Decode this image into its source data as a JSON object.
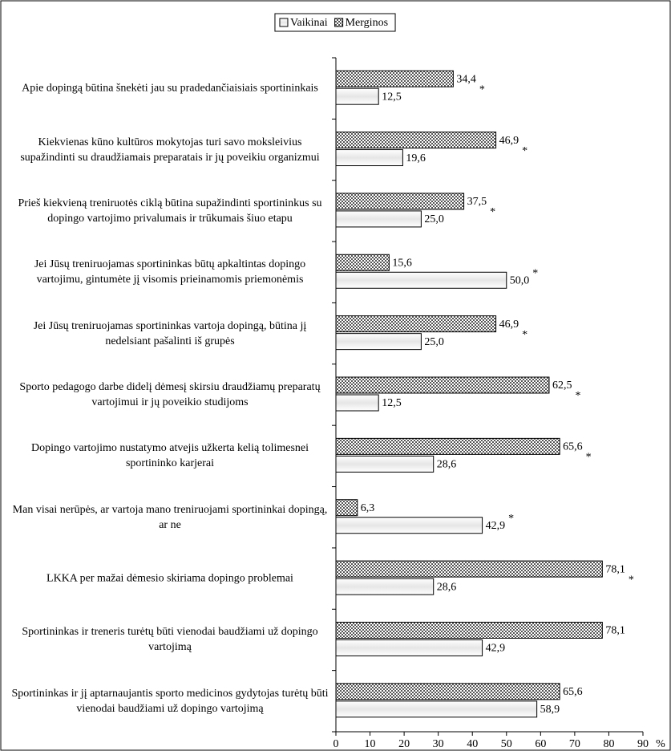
{
  "chart_data": {
    "type": "bar",
    "orientation": "horizontal",
    "categories": [
      "Apie dopingą būtina šnekėti jau su pradedančiaisiais sportininkais",
      "Kiekvienas kūno kultūros mokytojas turi savo moksleivius supažindinti su draudžiamais preparatais ir jų poveikiu organizmui",
      "Prieš kiekvieną treniruotės ciklą būtina supažindinti sportininkus su dopingo vartojimo privalumais ir trūkumais šiuo etapu",
      "Jei Jūsų treniruojamas sportininkas būtų apkaltintas dopingo vartojimu, gintumėte jį visomis prieinamomis priemonėmis",
      "Jei Jūsų treniruojamas sportininkas vartoja dopingą, būtina jį nedelsiant pašalinti iš grupės",
      "Sporto pedagogo darbe didelį dėmesį skirsiu draudžiamų preparatų vartojimui ir jų poveikio studijoms",
      "Dopingo vartojimo nustatymo atvejis užkerta kelią tolimesnei sportininko karjerai",
      "Man visai nerūpės, ar vartoja mano treniruojami sportininkai dopingą, ar ne",
      "LKKA per mažai dėmesio skiriama dopingo problemai",
      "Sportininkas ir treneris turėtų būti vienodai baudžiami už dopingo vartojimą",
      "Sportininkas ir jį aptarnaujantis sporto medicinos gydytojas turėtų būti vienodai baudžiami už dopingo vartojimą"
    ],
    "series": [
      {
        "name": "Vaikinai",
        "color": "#f2f2f2",
        "pattern": "none",
        "values": [
          12.5,
          19.6,
          25.0,
          50.0,
          25.0,
          12.5,
          28.6,
          42.9,
          28.6,
          42.9,
          58.9
        ],
        "value_labels": [
          "12,5",
          "19,6",
          "25,0",
          "50,0",
          "25,0",
          "12,5",
          "28,6",
          "42,9",
          "28,6",
          "42,9",
          "58,9"
        ]
      },
      {
        "name": "Merginos",
        "color": "#777777",
        "pattern": "checker",
        "values": [
          34.4,
          46.9,
          37.5,
          15.6,
          46.9,
          62.5,
          65.6,
          6.3,
          78.1,
          78.1,
          65.6
        ],
        "value_labels": [
          "34,4",
          "46,9",
          "37,5",
          "15,6",
          "46,9",
          "62,5",
          "65,6",
          "6,3",
          "78,1",
          "78,1",
          "65,6"
        ]
      }
    ],
    "significance": [
      "*",
      "*",
      "*",
      "*",
      "*",
      "*",
      "*",
      "*",
      "*",
      null,
      null
    ],
    "xlim": [
      0,
      90
    ],
    "xticks": [
      0,
      10,
      20,
      30,
      40,
      50,
      60,
      70,
      80,
      90
    ],
    "xlabel": "%",
    "legend": "top"
  }
}
